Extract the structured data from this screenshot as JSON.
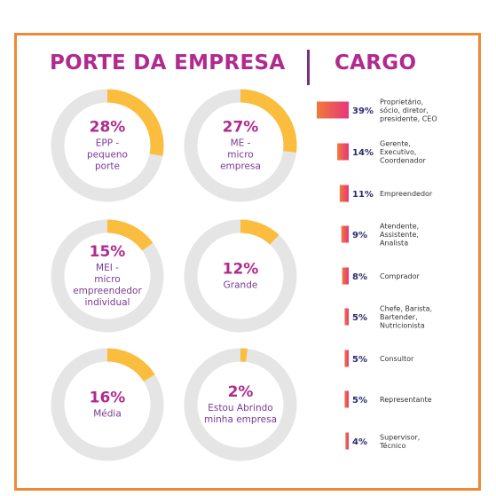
{
  "header": {
    "left_title": "PORTE DA EMPRESA",
    "right_title": "CARGO"
  },
  "colors": {
    "frame": "#ee8a35",
    "title": "#b02a8f",
    "divider": "#7a2e82",
    "track": "#e5e5e5",
    "arc": "#fbbd3d",
    "pct_text": "#b02a8f",
    "label_text": "#7a3a95",
    "bar_start": "#f07a3a",
    "bar_end": "#e8357a",
    "cargo_pct": "#2b2c6e",
    "cargo_label": "#333333"
  },
  "chart_data": [
    {
      "type": "pie",
      "title": "PORTE DA EMPRESA",
      "slices": [
        {
          "value": 28,
          "pct_label": "28%",
          "label_lines": [
            "EPP -",
            "pequeno",
            "porte"
          ]
        },
        {
          "value": 27,
          "pct_label": "27%",
          "label_lines": [
            "ME -",
            "micro",
            "empresa"
          ]
        },
        {
          "value": 15,
          "pct_label": "15%",
          "label_lines": [
            "MEI -",
            "micro",
            "empreendedor",
            "individual"
          ]
        },
        {
          "value": 12,
          "pct_label": "12%",
          "label_lines": [
            "Grande"
          ]
        },
        {
          "value": 16,
          "pct_label": "16%",
          "label_lines": [
            "Média"
          ]
        },
        {
          "value": 2,
          "pct_label": "2%",
          "label_lines": [
            "Estou Abrindo",
            "minha empresa"
          ]
        }
      ]
    },
    {
      "type": "bar",
      "title": "CARGO",
      "bars": [
        {
          "value": 39,
          "pct_label": "39%",
          "label_lines": [
            "Proprietário,",
            "sócio, diretor,",
            "presidente, CEO"
          ]
        },
        {
          "value": 14,
          "pct_label": "14%",
          "label_lines": [
            "Gerente,",
            "Executivo,",
            "Coordenador"
          ]
        },
        {
          "value": 11,
          "pct_label": "11%",
          "label_lines": [
            "Empreendedor"
          ]
        },
        {
          "value": 9,
          "pct_label": "9%",
          "label_lines": [
            "Atendente,",
            "Assistente,",
            "Analista"
          ]
        },
        {
          "value": 8,
          "pct_label": "8%",
          "label_lines": [
            "Comprador"
          ]
        },
        {
          "value": 5,
          "pct_label": "5%",
          "label_lines": [
            "Chefe, Barista,",
            "Bartender,",
            "Nutricionista"
          ]
        },
        {
          "value": 5,
          "pct_label": "5%",
          "label_lines": [
            "Consultor"
          ]
        },
        {
          "value": 5,
          "pct_label": "5%",
          "label_lines": [
            "Representante"
          ]
        },
        {
          "value": 4,
          "pct_label": "4%",
          "label_lines": [
            "Supervisor,",
            "Técnico"
          ]
        }
      ]
    }
  ]
}
